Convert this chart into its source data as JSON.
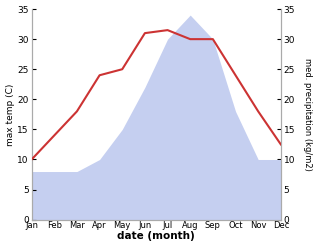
{
  "months": [
    "Jan",
    "Feb",
    "Mar",
    "Apr",
    "May",
    "Jun",
    "Jul",
    "Aug",
    "Sep",
    "Oct",
    "Nov",
    "Dec"
  ],
  "temperature": [
    10,
    14,
    18,
    24,
    25,
    31,
    31.5,
    30,
    30,
    24,
    18,
    12.5
  ],
  "precipitation": [
    8,
    8,
    8,
    10,
    15,
    22,
    30,
    34,
    30,
    18,
    10,
    10
  ],
  "temp_color": "#cc3333",
  "precip_color": "#c5cff0",
  "xlabel": "date (month)",
  "ylabel_left": "max temp (C)",
  "ylabel_right": "med. precipitation (kg/m2)",
  "ylim": [
    0,
    35
  ],
  "yticks": [
    0,
    5,
    10,
    15,
    20,
    25,
    30,
    35
  ],
  "background_color": "#ffffff"
}
